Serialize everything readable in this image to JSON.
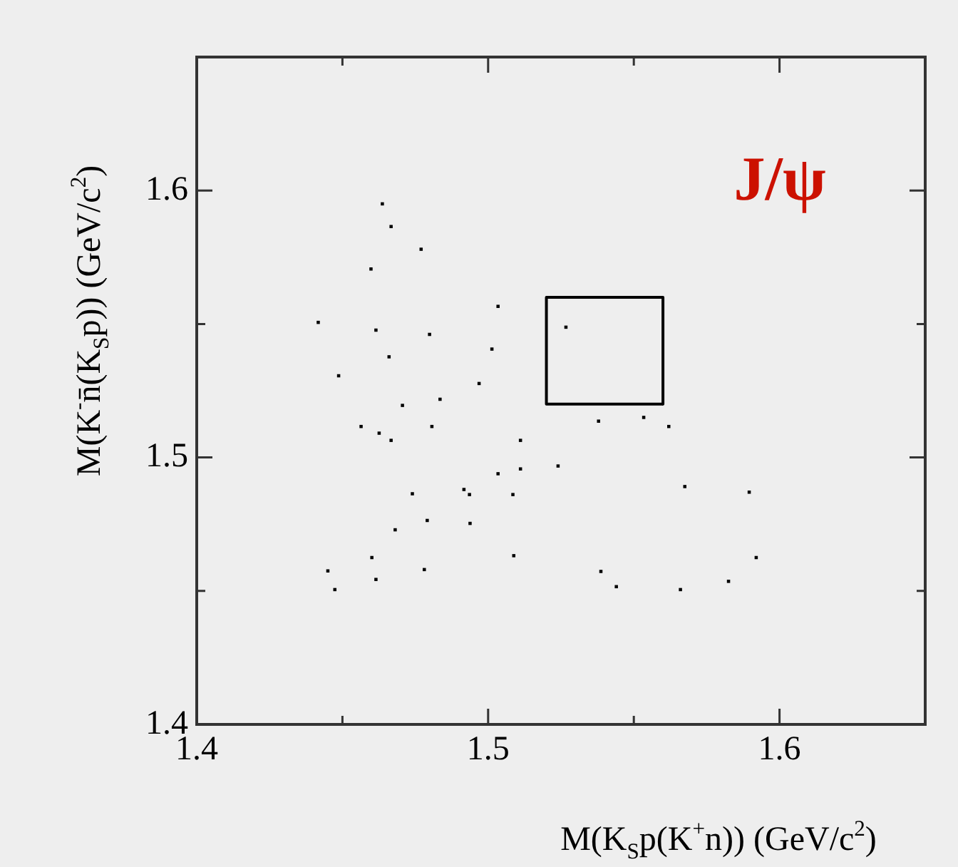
{
  "chart_data": {
    "type": "scatter",
    "xlabel": "M(K$_{S}$p(K$^{+}$n)) (GeV/c$^{2}$)",
    "ylabel": "M(K$^{-}$n̄(K$_{S}$p)) (GeV/c$^{2}$)",
    "annotations": [
      "J/ψ"
    ],
    "xlim": [
      1.4,
      1.65
    ],
    "ylim": [
      1.4,
      1.65
    ],
    "xticks": [
      1.4,
      {
        "value": 1.45,
        "label": null
      },
      1.5,
      {
        "value": 1.55,
        "label": null
      },
      1.6
    ],
    "yticks": [
      1.4,
      {
        "value": 1.45,
        "label": null
      },
      1.5,
      {
        "value": 1.55,
        "label": null
      },
      1.6
    ],
    "grid": false,
    "legend": false,
    "marker": "square",
    "series": [
      {
        "color": "#000000",
        "x": [
          1.4637,
          1.4667,
          1.477,
          1.4598,
          1.5034,
          1.4417,
          1.4615,
          1.4799,
          1.5013,
          1.466,
          1.4487,
          1.4969,
          1.4835,
          1.4706,
          1.4564,
          1.4807,
          1.4626,
          1.4667,
          1.5111,
          1.5034,
          1.5111,
          1.474,
          1.4917,
          1.4936,
          1.5085,
          1.4791,
          1.4938,
          1.4681,
          1.5088,
          1.4601,
          1.445,
          1.4781,
          1.4615,
          1.4474,
          1.5379,
          1.5534,
          1.562,
          1.524,
          1.5675,
          1.5896,
          1.5387,
          1.544,
          1.566,
          1.5825,
          1.592,
          1.5267
        ],
        "values": [
          1.595,
          1.5865,
          1.578,
          1.5706,
          1.5566,
          1.5506,
          1.5477,
          1.5461,
          1.5406,
          1.5377,
          1.5306,
          1.5277,
          1.5218,
          1.5195,
          1.5116,
          1.5116,
          1.5091,
          1.5064,
          1.5064,
          1.4939,
          1.4957,
          1.4864,
          1.488,
          1.4861,
          1.4861,
          1.4764,
          1.4753,
          1.4729,
          1.4632,
          1.4625,
          1.4575,
          1.458,
          1.4543,
          1.4505,
          1.5136,
          1.515,
          1.5116,
          1.4968,
          1.4891,
          1.487,
          1.4573,
          1.4516,
          1.4505,
          1.4536,
          1.4625,
          1.5488
        ]
      },
      {
        "type": "line",
        "color": "#000000",
        "marker": "none",
        "x": [
          1.52,
          1.52,
          1.56
        ],
        "values": [
          1.56,
          1.52,
          1.52
        ]
      },
      {
        "type": "line",
        "color": "#000000",
        "marker": "none",
        "x": [
          1.52,
          1.56,
          1.56
        ],
        "values": [
          1.56,
          1.56,
          1.52
        ]
      }
    ]
  }
}
